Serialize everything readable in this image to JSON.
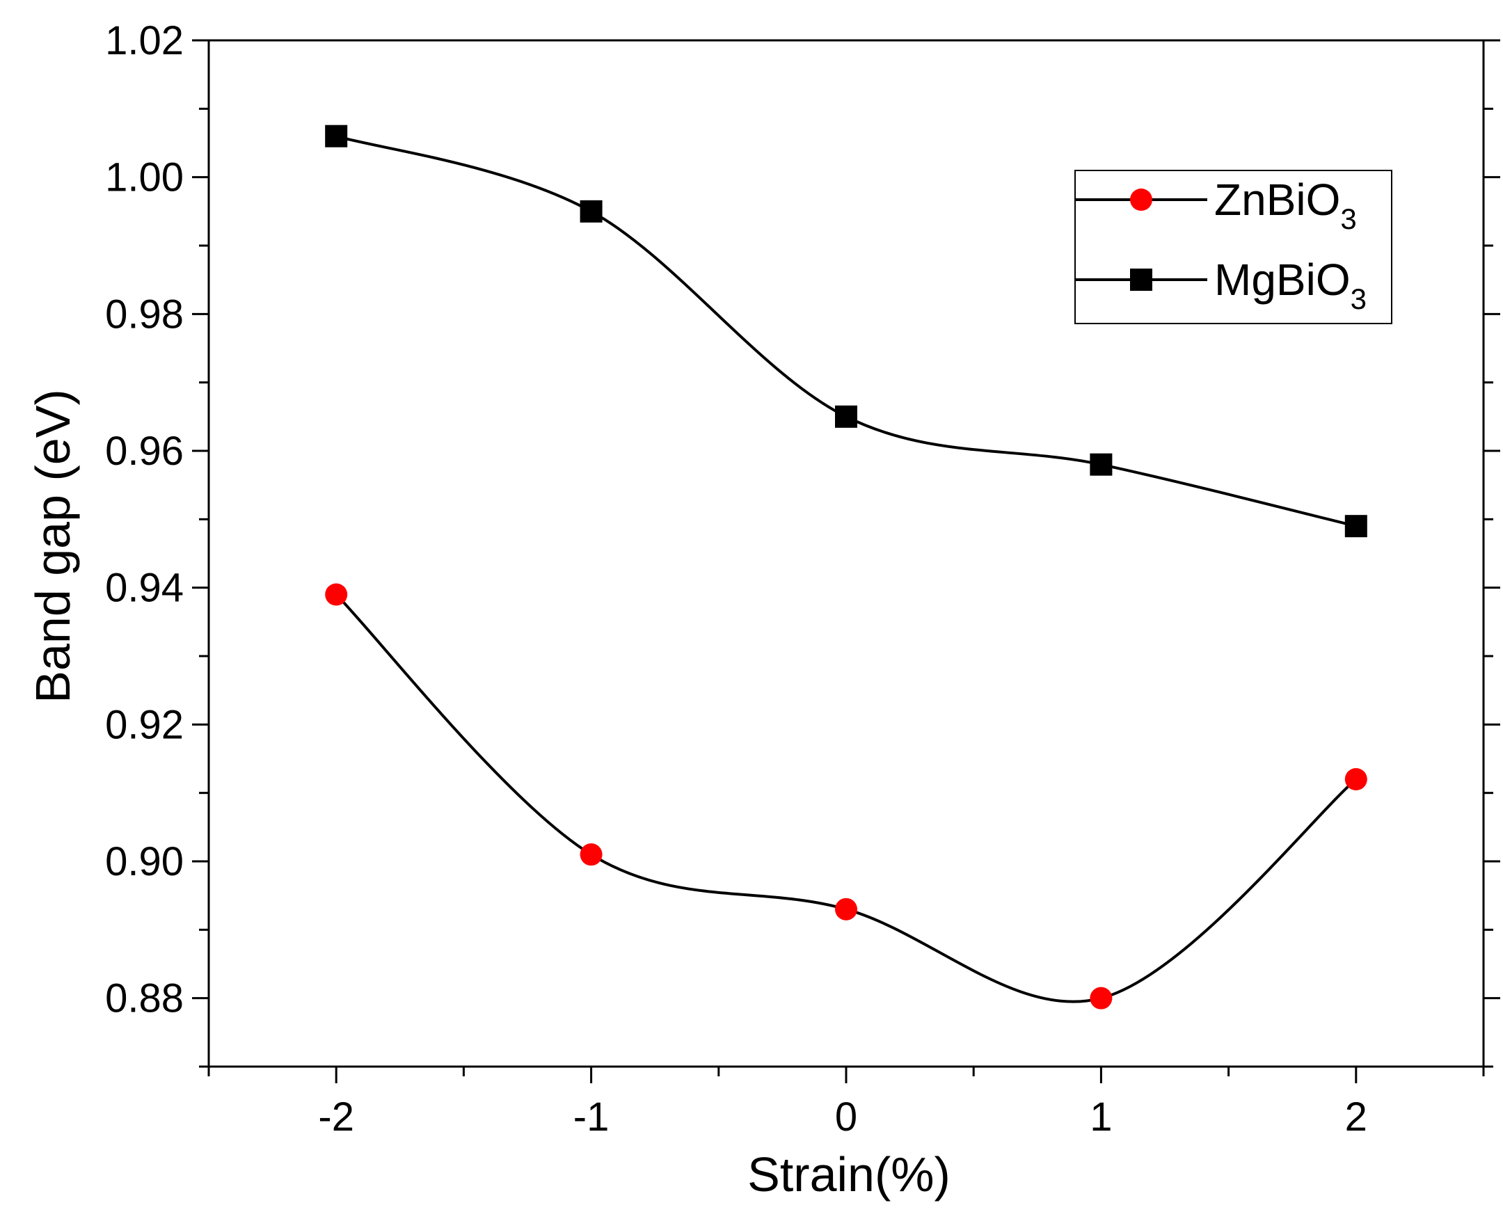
{
  "chart_data": {
    "type": "line",
    "title": "",
    "xlabel": "Strain(%)",
    "ylabel": "Band gap (eV)",
    "x": [
      -2,
      -1,
      0,
      1,
      2
    ],
    "xlim": [
      -2.5,
      2.5
    ],
    "ylim": [
      0.87,
      1.02
    ],
    "xticks": [
      -2,
      -1,
      0,
      1,
      2
    ],
    "xtick_labels": [
      "-2",
      "-1",
      "0",
      "1",
      "2"
    ],
    "yticks": [
      0.88,
      0.9,
      0.92,
      0.94,
      0.96,
      0.98,
      1.0,
      1.02
    ],
    "ytick_labels": [
      "0.88",
      "0.90",
      "0.92",
      "0.94",
      "0.96",
      "0.98",
      "1.00",
      "1.02"
    ],
    "grid": false,
    "legend_position": "top-right",
    "series": [
      {
        "name": "ZnBiO",
        "subscript": "3",
        "marker": "circle",
        "marker_color": "#ff0000",
        "line_color": "#000000",
        "values": [
          0.939,
          0.901,
          0.893,
          0.88,
          0.912
        ]
      },
      {
        "name": "MgBiO",
        "subscript": "3",
        "marker": "square",
        "marker_color": "#000000",
        "line_color": "#000000",
        "values": [
          1.006,
          0.995,
          0.965,
          0.958,
          0.949
        ]
      }
    ]
  }
}
